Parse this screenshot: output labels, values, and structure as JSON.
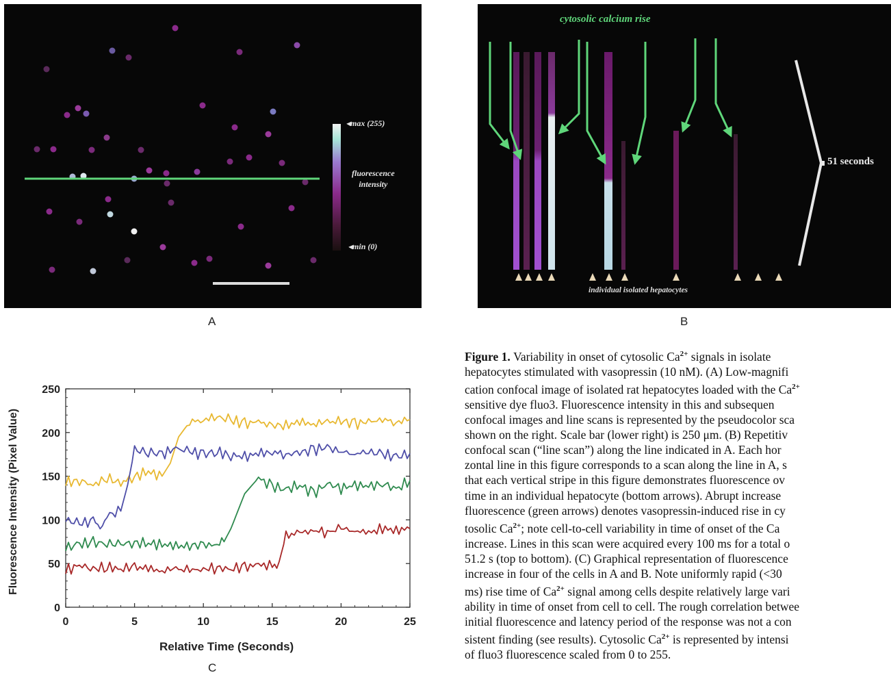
{
  "panels": {
    "a": {
      "letter": "A",
      "legend_max": "max (255)",
      "legend_title_line1": "fluorescence",
      "legend_title_line2": "intensity",
      "legend_min": "min (0)"
    },
    "b": {
      "letter": "B",
      "top_label": "cytosolic calcium rise",
      "duration_label": "51 seconds",
      "bottom_label": "individual isolated hepatocytes"
    },
    "c": {
      "letter": "C"
    }
  },
  "colors": {
    "yellow": "#e8b830",
    "blue": "#4e4ea8",
    "green": "#2e8a4e",
    "red": "#a82828",
    "scan_line": "#5fd67a",
    "magenta": "#8a2a8a"
  },
  "chart_data": {
    "type": "line",
    "xlabel": "Relative Time (Seconds)",
    "ylabel": "Fluorescence Intensity (Pixel Value)",
    "xlim": [
      0,
      25
    ],
    "ylim": [
      0,
      250
    ],
    "xticks": [
      0,
      5,
      10,
      15,
      20,
      25
    ],
    "yticks": [
      0,
      50,
      100,
      150,
      200,
      250
    ],
    "grid": false,
    "series": [
      {
        "color": "#e8b830",
        "x": [
          0,
          1,
          2,
          3,
          4,
          5,
          6,
          7,
          7.6,
          8.2,
          9,
          10,
          11,
          12,
          13,
          14,
          15,
          16,
          17,
          18,
          19,
          20,
          21,
          22,
          23,
          24,
          25
        ],
        "y": [
          143,
          145,
          140,
          148,
          142,
          150,
          155,
          150,
          165,
          195,
          212,
          215,
          218,
          214,
          210,
          212,
          208,
          208,
          212,
          210,
          212,
          213,
          210,
          212,
          215,
          212,
          215
        ]
      },
      {
        "color": "#4e4ea8",
        "x": [
          0,
          1,
          2,
          2.5,
          3,
          4,
          4.5,
          5,
          6,
          7,
          8,
          9,
          10,
          11,
          12,
          13,
          14,
          15,
          16,
          17,
          18,
          19,
          20,
          21,
          22,
          23,
          24,
          25
        ],
        "y": [
          100,
          96,
          98,
          92,
          105,
          110,
          140,
          180,
          178,
          175,
          182,
          178,
          175,
          178,
          174,
          172,
          176,
          178,
          175,
          177,
          180,
          183,
          178,
          176,
          178,
          175,
          172,
          176
        ]
      },
      {
        "color": "#2e8a4e",
        "x": [
          0,
          1,
          2,
          3,
          4,
          5,
          6,
          7,
          8,
          9,
          10,
          11,
          11.5,
          12,
          13,
          14,
          15,
          16,
          17,
          18,
          19,
          20,
          21,
          22,
          23,
          24,
          25
        ],
        "y": [
          68,
          72,
          74,
          73,
          72,
          74,
          73,
          72,
          70,
          70,
          72,
          70,
          75,
          90,
          130,
          148,
          138,
          135,
          140,
          130,
          142,
          136,
          140,
          138,
          142,
          135,
          145
        ]
      },
      {
        "color": "#a82828",
        "x": [
          0,
          1,
          2,
          3,
          4,
          5,
          6,
          7,
          8,
          9,
          10,
          11,
          12,
          13,
          14,
          15,
          15.5,
          16,
          17,
          18,
          19,
          20,
          21,
          22,
          23,
          24,
          25
        ],
        "y": [
          42,
          48,
          44,
          46,
          44,
          46,
          44,
          42,
          44,
          42,
          44,
          45,
          44,
          46,
          48,
          48,
          52,
          82,
          85,
          88,
          86,
          90,
          88,
          85,
          90,
          88,
          90
        ]
      }
    ]
  },
  "caption": {
    "lead": "Figure 1.",
    "lines": [
      [
        "Variability in onset of cytosolic Ca",
        "2+",
        " signals in isolate"
      ],
      [
        "hepatocytes stimulated with vasopressin (10 nM). (A) Low-magnifi",
        "",
        ""
      ],
      [
        "cation confocal image of isolated rat hepatocytes loaded with the Ca",
        "2+",
        ""
      ],
      [
        "sensitive dye fluo3. Fluorescence intensity in this and subsequen",
        "",
        ""
      ],
      [
        "confocal images and line scans is represented by the pseudocolor sca",
        "",
        ""
      ],
      [
        "shown on the right. Scale bar (lower right) is 250 μm. (B) Repetitiv",
        "",
        ""
      ],
      [
        "confocal scan (“line scan”) along the line indicated in A. Each hor",
        "",
        ""
      ],
      [
        "zontal line in this figure corresponds to a scan along the line in A, s",
        "",
        ""
      ],
      [
        "that each vertical stripe in this figure demonstrates fluorescence ov",
        "",
        ""
      ],
      [
        "time in an individual hepatocyte (bottom arrows). Abrupt increase",
        "",
        ""
      ],
      [
        "fluorescence (green arrows) denotes vasopressin-induced rise in cy",
        "",
        ""
      ],
      [
        "tosolic Ca",
        "2+",
        "; note cell-to-cell variability in time of onset of the Ca"
      ],
      [
        "increase. Lines in this scan were acquired every 100 ms for a total o",
        "",
        ""
      ],
      [
        "51.2 s (top to bottom). (C) Graphical representation of fluorescence",
        "",
        ""
      ],
      [
        "increase in four of the cells in A and B. Note uniformly rapid (<30",
        "",
        ""
      ],
      [
        "ms) rise time of Ca",
        "2+",
        " signal among cells despite relatively large vari"
      ],
      [
        "ability in time of onset from cell to cell. The rough correlation betwee",
        "",
        ""
      ],
      [
        "initial fluorescence and latency period of the response was not a con",
        "",
        ""
      ],
      [
        "sistent finding (see results). Cytosolic Ca",
        "2+",
        " is represented by intensi"
      ],
      [
        "of fluo3 fluorescence scaled from 0 to 255.",
        "",
        ""
      ]
    ]
  }
}
